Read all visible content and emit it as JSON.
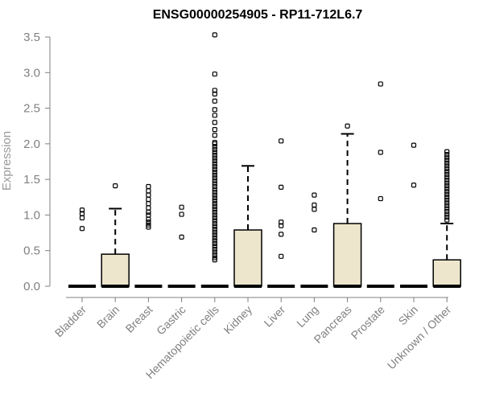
{
  "chart_data": {
    "type": "box",
    "title": "ENSG00000254905 - RP11-712L6.7",
    "xlabel": "",
    "ylabel": "Expression",
    "ylim": [
      0,
      3.5
    ],
    "yticks": [
      "0.0",
      "0.5",
      "1.0",
      "1.5",
      "2.0",
      "2.5",
      "3.0",
      "3.5"
    ],
    "box_fill": "#ede6cc",
    "box_stroke": "#000000",
    "categories": [
      "Bladder",
      "Brain",
      "Breast",
      "Gastric",
      "Hematopoietic cells",
      "Kidney",
      "Liver",
      "Lung",
      "Pancreas",
      "Prostate",
      "Skin",
      "Unknown / Other"
    ],
    "boxes": [
      {
        "q1": 0,
        "median": 0,
        "q3": 0,
        "whisker_low": 0,
        "whisker_high": 0,
        "outliers": [
          0.81,
          0.96,
          1.02,
          1.07
        ]
      },
      {
        "q1": 0,
        "median": 0,
        "q3": 0.45,
        "whisker_low": 0,
        "whisker_high": 1.09,
        "outliers": [
          1.41
        ]
      },
      {
        "q1": 0,
        "median": 0,
        "q3": 0,
        "whisker_low": 0,
        "whisker_high": 0,
        "outliers": [
          0.83,
          0.86,
          0.9,
          0.94,
          1.0,
          1.04,
          1.1,
          1.16,
          1.22,
          1.28,
          1.34,
          1.4
        ]
      },
      {
        "q1": 0,
        "median": 0,
        "q3": 0,
        "whisker_low": 0,
        "whisker_high": 0,
        "outliers": [
          0.69,
          1.01,
          1.11
        ]
      },
      {
        "q1": 0,
        "median": 0,
        "q3": 0,
        "whisker_low": 0,
        "whisker_high": 0,
        "outliers": [
          0.37,
          0.4,
          0.44,
          0.48,
          0.52,
          0.56,
          0.6,
          0.64,
          0.68,
          0.72,
          0.76,
          0.8,
          0.84,
          0.88,
          0.92,
          0.96,
          1.0,
          1.04,
          1.08,
          1.12,
          1.16,
          1.2,
          1.24,
          1.28,
          1.32,
          1.36,
          1.4,
          1.44,
          1.48,
          1.52,
          1.56,
          1.6,
          1.64,
          1.68,
          1.72,
          1.76,
          1.8,
          1.84,
          1.88,
          1.92,
          1.96,
          2.0,
          2.02,
          2.12,
          2.2,
          2.3,
          2.4,
          2.48,
          2.6,
          2.7,
          2.75,
          2.98,
          3.53
        ]
      },
      {
        "q1": 0,
        "median": 0,
        "q3": 0.79,
        "whisker_low": 0,
        "whisker_high": 1.69,
        "outliers": []
      },
      {
        "q1": 0,
        "median": 0,
        "q3": 0,
        "whisker_low": 0,
        "whisker_high": 0,
        "outliers": [
          0.42,
          0.73,
          0.85,
          0.9,
          1.39,
          2.04
        ]
      },
      {
        "q1": 0,
        "median": 0,
        "q3": 0,
        "whisker_low": 0,
        "whisker_high": 0,
        "outliers": [
          0.79,
          1.08,
          1.14,
          1.28
        ]
      },
      {
        "q1": 0,
        "median": 0,
        "q3": 0.88,
        "whisker_low": 0,
        "whisker_high": 2.14,
        "outliers": [
          2.25
        ]
      },
      {
        "q1": 0,
        "median": 0,
        "q3": 0,
        "whisker_low": 0,
        "whisker_high": 0,
        "outliers": [
          1.23,
          1.88,
          2.84
        ]
      },
      {
        "q1": 0,
        "median": 0,
        "q3": 0,
        "whisker_low": 0,
        "whisker_high": 0,
        "outliers": [
          1.42,
          1.98
        ]
      },
      {
        "q1": 0,
        "median": 0,
        "q3": 0.37,
        "whisker_low": 0,
        "whisker_high": 0.88,
        "outliers": [
          0.93,
          0.97,
          1.01,
          1.05,
          1.09,
          1.13,
          1.17,
          1.21,
          1.25,
          1.29,
          1.33,
          1.37,
          1.41,
          1.45,
          1.49,
          1.53,
          1.57,
          1.61,
          1.65,
          1.69,
          1.73,
          1.77,
          1.81,
          1.85,
          1.89
        ]
      }
    ]
  }
}
